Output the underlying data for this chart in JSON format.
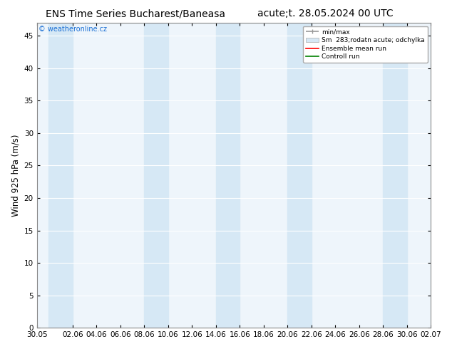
{
  "title_left": "ENS Time Series Bucharest/Baneasa",
  "title_right": "acute;t. 28.05.2024 00 UTC",
  "ylabel": "Wind 925 hPa (m/s)",
  "watermark": "© weatheronline.cz",
  "ylim": [
    0,
    47
  ],
  "yticks": [
    0,
    5,
    10,
    15,
    20,
    25,
    30,
    35,
    40,
    45
  ],
  "x_tick_labels": [
    "30.05",
    "02.06",
    "04.06",
    "06.06",
    "08.06",
    "10.06",
    "12.06",
    "14.06",
    "16.06",
    "18.06",
    "20.06",
    "22.06",
    "24.06",
    "26.06",
    "28.06",
    "30.06",
    "02.07"
  ],
  "band_color": "#d6e8f5",
  "background_color": "#ffffff",
  "plot_bg_color": "#eef5fb",
  "grid_color": "#ffffff",
  "legend_minmax_color": "#999999",
  "legend_spread_color": "#d6e8f5",
  "legend_mean_color": "#ff0000",
  "legend_control_color": "#008000",
  "title_fontsize": 10,
  "tick_fontsize": 7.5,
  "ylabel_fontsize": 8.5,
  "watermark_color": "#1a6fd4"
}
